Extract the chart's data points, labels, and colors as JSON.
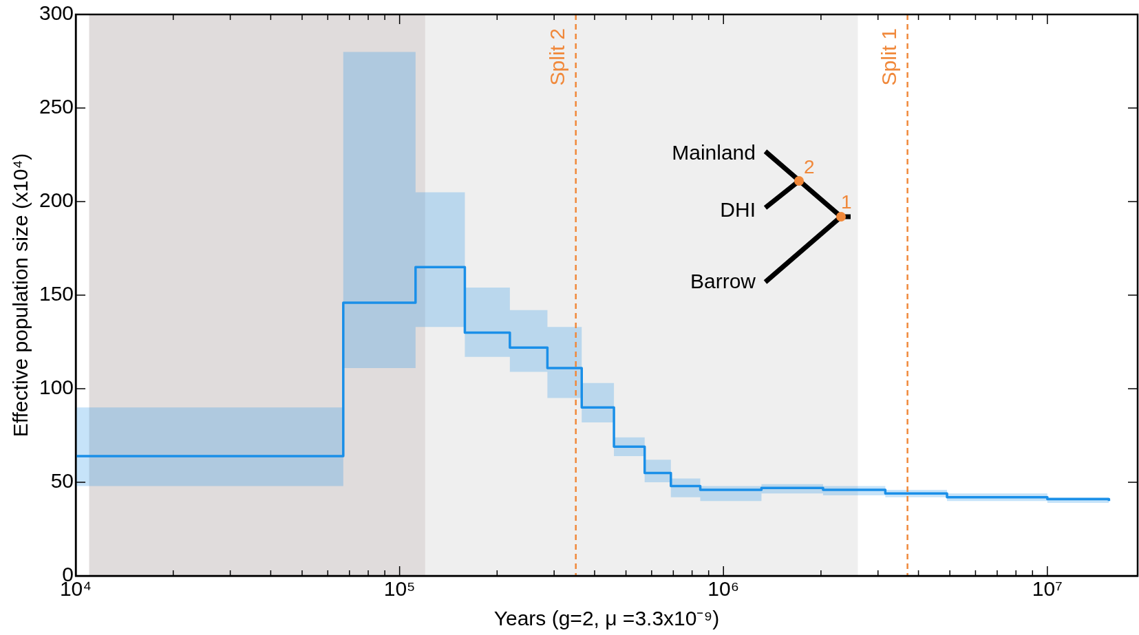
{
  "chart_data": {
    "type": "step",
    "xlabel": "Years (g=2, μ =3.3x10⁻⁹)",
    "ylabel": "Effective population size (x10⁴)",
    "log": "x",
    "grid": false,
    "legend": false,
    "line_style": "solid",
    "marker": "none",
    "xlim": [
      10000,
      19000000
    ],
    "ylim": [
      0,
      300
    ],
    "xticks": [
      {
        "value": 10000,
        "label": "10⁴"
      },
      {
        "value": 20000,
        "label": null
      },
      {
        "value": 30000,
        "label": null
      },
      {
        "value": 40000,
        "label": null
      },
      {
        "value": 50000,
        "label": null
      },
      {
        "value": 60000,
        "label": null
      },
      {
        "value": 70000,
        "label": null
      },
      {
        "value": 80000,
        "label": null
      },
      {
        "value": 90000,
        "label": null
      },
      {
        "value": 100000,
        "label": "10⁵"
      },
      {
        "value": 200000,
        "label": null
      },
      {
        "value": 300000,
        "label": null
      },
      {
        "value": 400000,
        "label": null
      },
      {
        "value": 500000,
        "label": null
      },
      {
        "value": 600000,
        "label": null
      },
      {
        "value": 700000,
        "label": null
      },
      {
        "value": 800000,
        "label": null
      },
      {
        "value": 900000,
        "label": null
      },
      {
        "value": 1000000,
        "label": "10⁶"
      },
      {
        "value": 2000000,
        "label": null
      },
      {
        "value": 3000000,
        "label": null
      },
      {
        "value": 4000000,
        "label": null
      },
      {
        "value": 5000000,
        "label": null
      },
      {
        "value": 6000000,
        "label": null
      },
      {
        "value": 7000000,
        "label": null
      },
      {
        "value": 8000000,
        "label": null
      },
      {
        "value": 9000000,
        "label": null
      },
      {
        "value": 10000000,
        "label": "10⁷"
      }
    ],
    "yticks": [
      0,
      50,
      100,
      150,
      200,
      250,
      300
    ],
    "series": [
      {
        "color": "#1a8fe8",
        "x": [
          10000,
          67000,
          112000,
          159000,
          219000,
          286000,
          365000,
          459000,
          571000,
          688000,
          848000,
          1310000,
          2030000,
          3160000,
          4900000,
          10000000,
          15500000
        ],
        "values": [
          64,
          146,
          165,
          130,
          122,
          111,
          90,
          69,
          55,
          48,
          46,
          47,
          46,
          44,
          42,
          41,
          40
        ],
        "lower": [
          48,
          111,
          133,
          117,
          109,
          95,
          82,
          64,
          50,
          42,
          40,
          44,
          43,
          42,
          40,
          39,
          39
        ],
        "upper": [
          90,
          280,
          205,
          154,
          142,
          133,
          103,
          74,
          62,
          52,
          48,
          49,
          48,
          46,
          44,
          42,
          42
        ]
      }
    ],
    "bands": [
      {
        "axis": "x",
        "from": 11000,
        "to": 120000,
        "color": "#e0dcdc"
      },
      {
        "axis": "x",
        "from": 120000,
        "to": 2600000,
        "color": "#efefef"
      }
    ],
    "ref_lines": [
      {
        "axis": "x",
        "value": 350000,
        "label": "Split 2",
        "color": "#f0883a",
        "line_style": "dashed"
      },
      {
        "axis": "x",
        "value": 3700000,
        "label": "Split 1",
        "color": "#f0883a",
        "line_style": "dashed"
      }
    ],
    "annotations": [
      "Mainland",
      "DHI",
      "Barrow",
      "1",
      "2"
    ]
  }
}
